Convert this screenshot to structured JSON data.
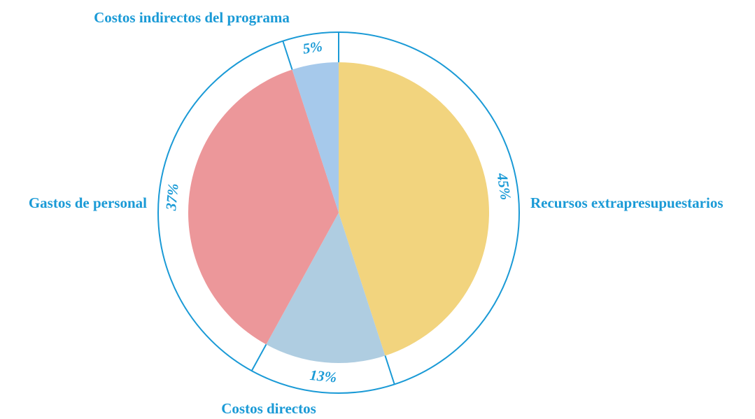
{
  "chart_data": {
    "type": "pie",
    "categories": [
      "Recursos extrapresupuestarios",
      "Costos directos",
      "Gastos de personal",
      "Costos indirectos del programa"
    ],
    "values": [
      45,
      13,
      37,
      5
    ],
    "value_labels": [
      "45%",
      "13%",
      "37%",
      "5%"
    ],
    "colors": [
      "#f2d47e",
      "#afcde1",
      "#ec979a",
      "#a6c9eb"
    ]
  }
}
